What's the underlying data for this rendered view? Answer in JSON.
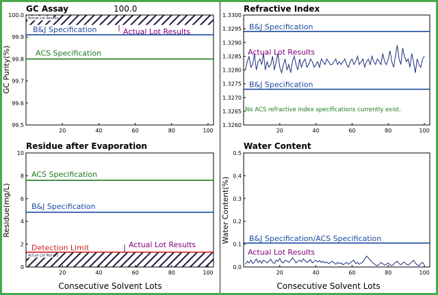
{
  "footer_xlabel_left": "Consecutive Solvent Lots",
  "footer_xlabel_right": "Consecutive Solvent Lots",
  "chart_data": [
    {
      "id": "gc",
      "type": "line",
      "title": "GC Assay",
      "top_value": "100.0",
      "ylabel": "GC Purity(%)",
      "xlabel": "",
      "xlim": [
        0,
        103
      ],
      "ylim": [
        99.5,
        100.0
      ],
      "yticks": [
        "100.0",
        "99.9",
        "99.8",
        "99.7",
        "99.6",
        "99.5"
      ],
      "ytick_values": [
        100.0,
        99.9,
        99.8,
        99.7,
        99.6,
        99.5
      ],
      "xticks": [
        20,
        40,
        60,
        80,
        100
      ],
      "lines": [
        {
          "name": "B&J Specification",
          "value": 99.91,
          "color": "#1a4aa0"
        },
        {
          "name": "ACS Specification",
          "value": 99.8,
          "color": "#1a7a1a"
        }
      ],
      "band": {
        "from": 99.955,
        "to": 100.0,
        "label": "Actual Lot Results"
      },
      "annotation": {
        "text": "Actual Lot Results",
        "color": "#800080"
      }
    },
    {
      "id": "ri",
      "type": "line",
      "title": "Refractive Index",
      "ylabel": "",
      "xlim": [
        0,
        103
      ],
      "ylim": [
        1.326,
        1.33
      ],
      "yticks": [
        "1.3300",
        "1.3295",
        "1.3290",
        "1.3285",
        "1.3280",
        "1.3275",
        "1.3270",
        "1.3265",
        "1.3260"
      ],
      "ytick_values": [
        1.33,
        1.3295,
        1.329,
        1.3285,
        1.328,
        1.3275,
        1.327,
        1.3265,
        1.326
      ],
      "xticks": [
        20,
        40,
        60,
        80,
        100
      ],
      "lines": [
        {
          "name": "B&J Specification",
          "value": 1.3294,
          "color": "#1a4aa0"
        },
        {
          "name": "B&J Specification",
          "value": 1.3273,
          "color": "#1a4aa0"
        }
      ],
      "series": {
        "name": "Actual Lot Results",
        "color": "#1a2a7a",
        "y": [
          1.328,
          1.3283,
          1.3285,
          1.3281,
          1.3282,
          1.3286,
          1.328,
          1.3283,
          1.3284,
          1.3282,
          1.3286,
          1.328,
          1.3283,
          1.3281,
          1.3282,
          1.3285,
          1.328,
          1.3283,
          1.3286,
          1.3281,
          1.3279,
          1.3282,
          1.3284,
          1.328,
          1.3282,
          1.3279,
          1.3283,
          1.3285,
          1.3282,
          1.328,
          1.3284,
          1.3281,
          1.3283,
          1.3284,
          1.3281,
          1.3282,
          1.3284,
          1.3283,
          1.3281,
          1.3282,
          1.3283,
          1.3281,
          1.3284,
          1.3283,
          1.3282,
          1.3284,
          1.3283,
          1.3282,
          1.3282,
          1.3283,
          1.3284,
          1.3282,
          1.3283,
          1.3282,
          1.3283,
          1.3284,
          1.3282,
          1.3281,
          1.3283,
          1.3284,
          1.3282,
          1.3283,
          1.3285,
          1.3282,
          1.3283,
          1.3284,
          1.3281,
          1.3283,
          1.3284,
          1.3282,
          1.3285,
          1.3283,
          1.3282,
          1.3284,
          1.3283,
          1.3282,
          1.3286,
          1.3283,
          1.3282,
          1.3284,
          1.3287,
          1.3283,
          1.3281,
          1.3285,
          1.3289,
          1.3284,
          1.3282,
          1.3288,
          1.3285,
          1.3283,
          1.3284,
          1.3281,
          1.3286,
          1.3283,
          1.3279,
          1.3284,
          1.3282,
          1.3281,
          1.3284,
          1.3285
        ]
      },
      "annotation": {
        "text": "Actual Lot Results",
        "color": "#800080"
      },
      "note": {
        "text": "No ACS refractive index specifications currently exist.",
        "color": "#1a7a1a"
      }
    },
    {
      "id": "res",
      "type": "line",
      "title": "Residue after Evaporation",
      "ylabel": "Residue(mg/L)",
      "xlim": [
        0,
        103
      ],
      "ylim": [
        0,
        10
      ],
      "yticks": [
        "10",
        "8",
        "6",
        "4",
        "2",
        "0"
      ],
      "ytick_values": [
        10,
        8,
        6,
        4,
        2,
        0
      ],
      "xticks": [
        20,
        40,
        60,
        80,
        100
      ],
      "lines": [
        {
          "name": "ACS Specification",
          "value": 7.6,
          "color": "#1a7a1a"
        },
        {
          "name": "B&J Specification",
          "value": 4.8,
          "color": "#1a4aa0"
        },
        {
          "name": "Detection Limit",
          "value": 1.3,
          "color": "#cc2020"
        }
      ],
      "band": {
        "from": 0,
        "to": 1.3,
        "label": "Actual Lot Results"
      },
      "annotation": {
        "text": "Actual Lot Results",
        "color": "#800080"
      }
    },
    {
      "id": "wc",
      "type": "line",
      "title": "Water Content",
      "ylabel": "Water Content(%)",
      "xlim": [
        0,
        103
      ],
      "ylim": [
        0,
        0.5
      ],
      "yticks": [
        "0.5",
        "0.4",
        "0.3",
        "0.2",
        "0.1",
        "0.0"
      ],
      "ytick_values": [
        0.5,
        0.4,
        0.3,
        0.2,
        0.1,
        0.0
      ],
      "xticks": [
        20,
        40,
        60,
        80,
        100
      ],
      "lines": [
        {
          "name": "B&J Specification/ACS Specification",
          "value": 0.105,
          "color": "#1a4aa0"
        }
      ],
      "series": {
        "name": "Actual Lot Results",
        "color": "#1a2a7a",
        "y": [
          0.012,
          0.025,
          0.018,
          0.03,
          0.015,
          0.022,
          0.035,
          0.02,
          0.028,
          0.016,
          0.03,
          0.024,
          0.018,
          0.026,
          0.034,
          0.02,
          0.015,
          0.03,
          0.025,
          0.038,
          0.022,
          0.018,
          0.03,
          0.026,
          0.02,
          0.028,
          0.04,
          0.032,
          0.018,
          0.025,
          0.03,
          0.022,
          0.036,
          0.028,
          0.02,
          0.026,
          0.032,
          0.018,
          0.024,
          0.03,
          0.022,
          0.028,
          0.02,
          0.025,
          0.018,
          0.022,
          0.015,
          0.02,
          0.025,
          0.018,
          0.012,
          0.02,
          0.015,
          0.018,
          0.01,
          0.015,
          0.02,
          0.012,
          0.018,
          0.025,
          0.03,
          0.015,
          0.02,
          0.012,
          0.018,
          0.022,
          0.035,
          0.048,
          0.04,
          0.03,
          0.022,
          0.015,
          0.01,
          0.005,
          0.012,
          0.02,
          0.015,
          0.008,
          0.012,
          0.018,
          0.01,
          0.006,
          0.012,
          0.02,
          0.025,
          0.015,
          0.01,
          0.018,
          0.022,
          0.012,
          0.008,
          0.015,
          0.022,
          0.03,
          0.018,
          0.01,
          0.005,
          0.015,
          0.02,
          0.01
        ]
      },
      "annotation": {
        "text": "Actual Lot Results",
        "color": "#800080"
      }
    }
  ]
}
